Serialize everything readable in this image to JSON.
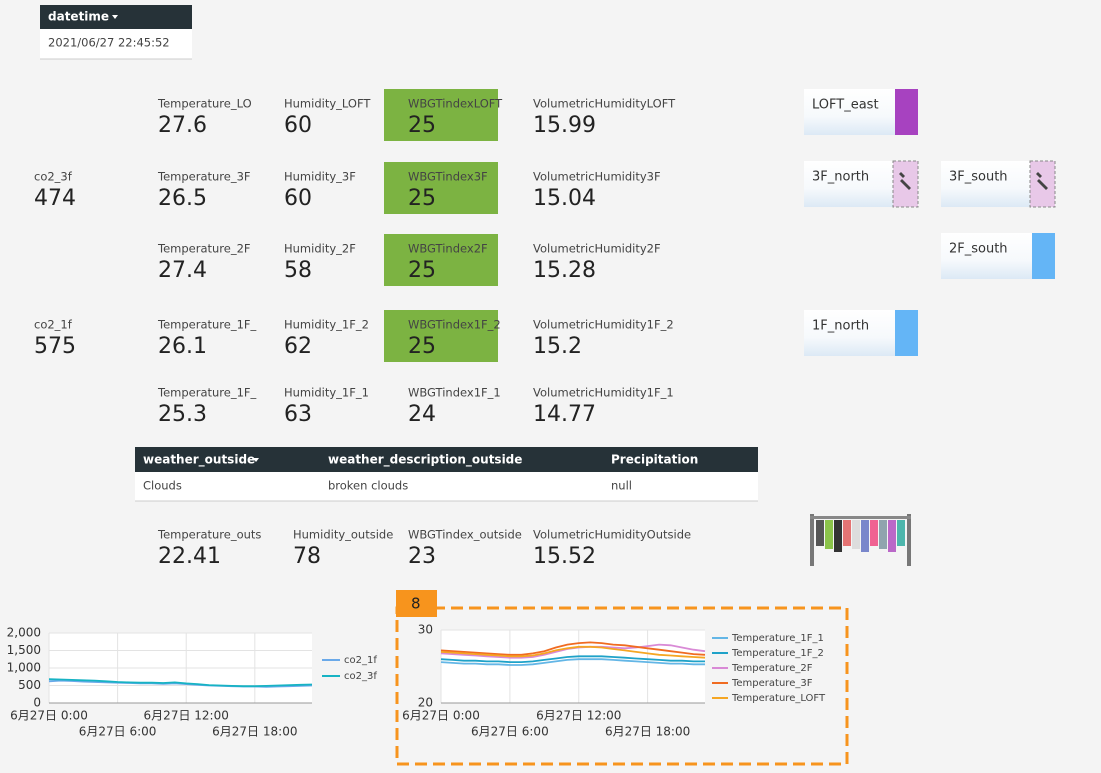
{
  "header": {
    "label": "datetime",
    "value": "2021/06/27 22:45:52"
  },
  "co2": [
    {
      "label": "co2_3f",
      "value": 474
    },
    {
      "label": "co2_1f",
      "value": 575
    }
  ],
  "metrics": [
    [
      {
        "label": "Temperature_LO",
        "value": 27.6
      },
      {
        "label": "Humidity_LOFT",
        "value": 60
      },
      {
        "label": "WBGTindexLOFT",
        "value": 25
      },
      {
        "label": "VolumetricHumidityLOFT",
        "value": 15.99
      }
    ],
    [
      {
        "label": "Temperature_3F",
        "value": 26.5
      },
      {
        "label": "Humidity_3F",
        "value": 60
      },
      {
        "label": "WBGTindex3F",
        "value": 25
      },
      {
        "label": "VolumetricHumidity3F",
        "value": 15.04
      }
    ],
    [
      {
        "label": "Temperature_2F",
        "value": 27.4
      },
      {
        "label": "Humidity_2F",
        "value": 58
      },
      {
        "label": "WBGTindex2F",
        "value": 25
      },
      {
        "label": "VolumetricHumidity2F",
        "value": 15.28
      }
    ],
    [
      {
        "label": "Temperature_1F_",
        "value": 26.1
      },
      {
        "label": "Humidity_1F_2",
        "value": 62
      },
      {
        "label": "WBGTindex1F_2",
        "value": 25
      },
      {
        "label": "VolumetricHumidity1F_2",
        "value": 15.2
      }
    ],
    [
      {
        "label": "Temperature_1F_",
        "value": 25.3
      },
      {
        "label": "Humidity_1F_1",
        "value": 63
      },
      {
        "label": "WBGTindex1F_1",
        "value": 24
      },
      {
        "label": "VolumetricHumidity1F_1",
        "value": 14.77
      }
    ]
  ],
  "rooms": [
    {
      "label": "LOFT_east"
    },
    {
      "label": "3F_north"
    },
    {
      "label": "3F_south"
    },
    {
      "label": "2F_south"
    },
    {
      "label": "1F_north"
    }
  ],
  "weather_table": {
    "columns": [
      "weather_outside",
      "weather_description_outside",
      "Precipitation"
    ],
    "rows": [
      [
        "Clouds",
        "broken clouds",
        "null"
      ]
    ]
  },
  "outside": [
    {
      "label": "Temperature_outs",
      "value": 22.41
    },
    {
      "label": "Humidity_outside",
      "value": 78
    },
    {
      "label": "WBGTindex_outside",
      "value": 23
    },
    {
      "label": "VolumetricHumidityOutside",
      "value": 15.52
    }
  ],
  "annotation": "8",
  "chart_data": [
    {
      "type": "line",
      "grid": true,
      "x": [
        0,
        1,
        2,
        3,
        4,
        5,
        6,
        7,
        8,
        9,
        10,
        11,
        12,
        13,
        14,
        15,
        16,
        17,
        18,
        19,
        20,
        21,
        22,
        23
      ],
      "xlim": [
        0,
        23
      ],
      "xticks": [
        {
          "value": 0,
          "label": "6月27日 0:00"
        },
        {
          "value": 6,
          "label": "6月27日 6:00"
        },
        {
          "value": 12,
          "label": "6月27日 12:00"
        },
        {
          "value": 18,
          "label": "6月27日 18:00"
        }
      ],
      "ylim": [
        0,
        2000
      ],
      "yticks": [
        0,
        500,
        {
          "value": 1000,
          "label": "1,000"
        },
        {
          "value": 1500,
          "label": "1,500"
        },
        {
          "value": 2000,
          "label": "2,000"
        }
      ],
      "series": [
        {
          "name": "co2_1f",
          "color": "#6aa9e9",
          "values": [
            620,
            640,
            630,
            610,
            600,
            590,
            580,
            570,
            560,
            560,
            550,
            560,
            540,
            520,
            500,
            490,
            480,
            470,
            470,
            460,
            470,
            480,
            490,
            500
          ]
        },
        {
          "name": "co2_3f",
          "color": "#17b3c4",
          "values": [
            680,
            670,
            660,
            650,
            640,
            620,
            600,
            590,
            580,
            580,
            570,
            590,
            560,
            540,
            510,
            500,
            490,
            480,
            480,
            490,
            500,
            510,
            520,
            530
          ]
        }
      ]
    },
    {
      "type": "line",
      "grid": true,
      "x": [
        0,
        1,
        2,
        3,
        4,
        5,
        6,
        7,
        8,
        9,
        10,
        11,
        12,
        13,
        14,
        15,
        16,
        17,
        18,
        19,
        20,
        21,
        22,
        23
      ],
      "xlim": [
        0,
        23
      ],
      "xticks": [
        {
          "value": 0,
          "label": "6月27日 0:00"
        },
        {
          "value": 6,
          "label": "6月27日 6:00"
        },
        {
          "value": 12,
          "label": "6月27日 12:00"
        },
        {
          "value": 18,
          "label": "6月27日 18:00"
        }
      ],
      "ylim": [
        20,
        30
      ],
      "yticks": [
        20,
        30
      ],
      "series": [
        {
          "name": "Temperature_1F_1",
          "color": "#63b6e6",
          "values": [
            25.6,
            25.5,
            25.4,
            25.4,
            25.3,
            25.3,
            25.2,
            25.2,
            25.3,
            25.5,
            25.7,
            25.9,
            26.0,
            26.0,
            26.0,
            25.9,
            25.8,
            25.7,
            25.6,
            25.5,
            25.4,
            25.4,
            25.3,
            25.3
          ]
        },
        {
          "name": "Temperature_1F_2",
          "color": "#1fa2c8",
          "values": [
            26.0,
            25.9,
            25.8,
            25.8,
            25.7,
            25.7,
            25.6,
            25.6,
            25.7,
            25.9,
            26.1,
            26.3,
            26.4,
            26.4,
            26.4,
            26.3,
            26.2,
            26.1,
            26.0,
            25.9,
            25.8,
            25.8,
            25.7,
            25.7
          ]
        },
        {
          "name": "Temperature_2F",
          "color": "#d98ad6",
          "values": [
            26.8,
            26.7,
            26.6,
            26.5,
            26.4,
            26.3,
            26.2,
            26.2,
            26.3,
            26.6,
            27.0,
            27.4,
            27.6,
            27.7,
            27.7,
            27.6,
            27.5,
            27.6,
            27.8,
            28.0,
            27.9,
            27.6,
            27.3,
            27.1
          ]
        },
        {
          "name": "Temperature_3F",
          "color": "#f06b21",
          "values": [
            27.2,
            27.1,
            27.0,
            26.9,
            26.8,
            26.7,
            26.6,
            26.6,
            26.8,
            27.1,
            27.6,
            28.0,
            28.2,
            28.3,
            28.2,
            28.0,
            27.9,
            27.7,
            27.5,
            27.3,
            27.1,
            26.9,
            26.7,
            26.6
          ]
        },
        {
          "name": "Temperature_LOFT",
          "color": "#f5a623",
          "values": [
            27.0,
            26.9,
            26.8,
            26.7,
            26.6,
            26.5,
            26.4,
            26.4,
            26.5,
            26.8,
            27.2,
            27.5,
            27.7,
            27.7,
            27.6,
            27.4,
            27.2,
            27.0,
            26.8,
            26.6,
            26.5,
            26.4,
            26.3,
            26.2
          ]
        }
      ]
    }
  ]
}
